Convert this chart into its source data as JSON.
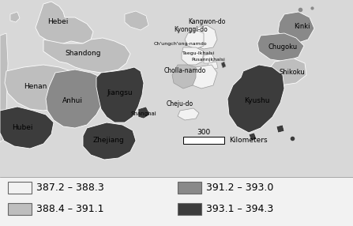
{
  "legend_items": [
    {
      "label": "387.2 – 388.3",
      "color": "#F2F2F2"
    },
    {
      "label": "388.4 – 391.1",
      "color": "#BEBEBE"
    },
    {
      "label": "391.2 – 393.0",
      "color": "#898989"
    },
    {
      "label": "393.1 – 394.3",
      "color": "#3C3C3C"
    }
  ],
  "bg_color": "#D8D8D8",
  "map_area_color": "#FFFFFF",
  "border_color": "#FFFFFF",
  "thin_border": "#AAAAAA",
  "label_fs": 6.5,
  "legend_fs": 9
}
